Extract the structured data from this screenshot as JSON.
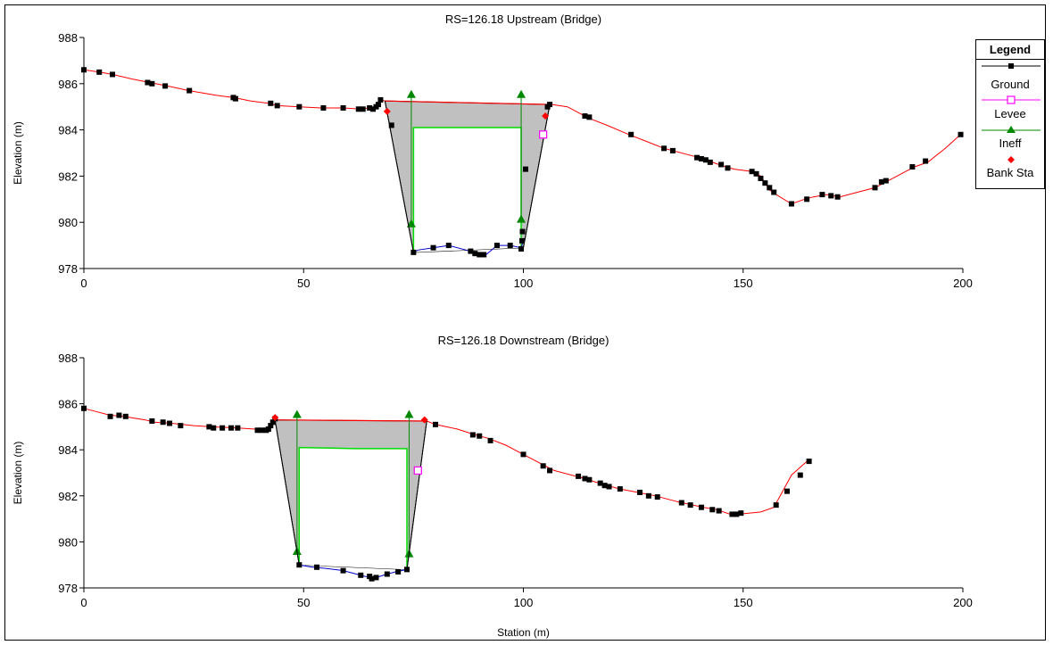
{
  "colors": {
    "ground_line": "#ff0000",
    "ground_marker": "#000000",
    "channel_line": "#0000cc",
    "levee": "#ff00ff",
    "ineff": "#008800",
    "deck": "#00dd00",
    "bank": "#ff0000",
    "fill": "#c0c0c0"
  },
  "legend": {
    "title": "Legend",
    "items": [
      {
        "label": "Ground",
        "icon": "square-marker-line"
      },
      {
        "label": "Levee",
        "icon": "hollow-square-marker-line"
      },
      {
        "label": "Ineff",
        "icon": "triangle-marker-line"
      },
      {
        "label": "Bank Sta",
        "icon": "diamond-marker"
      }
    ]
  },
  "chart_data": [
    {
      "type": "line",
      "title": "RS=126.18  Upstream  (Bridge)",
      "xlabel": "",
      "ylabel": "Elevation (m)",
      "xlim": [
        0,
        200
      ],
      "ylim": [
        978,
        988
      ],
      "xticks": [
        0,
        50,
        100,
        150,
        200
      ],
      "yticks": [
        978,
        980,
        982,
        984,
        986,
        988
      ],
      "ground_left": [
        [
          0,
          986.6
        ],
        [
          3.5,
          986.5
        ],
        [
          6.5,
          986.4
        ],
        [
          11,
          986.2
        ],
        [
          15,
          986.05
        ],
        [
          19,
          985.9
        ],
        [
          24,
          985.7
        ],
        [
          30,
          985.5
        ],
        [
          34,
          985.4
        ],
        [
          38,
          985.25
        ],
        [
          42,
          985.15
        ],
        [
          44,
          985.05
        ],
        [
          49,
          985.0
        ],
        [
          54,
          984.95
        ],
        [
          59,
          984.95
        ],
        [
          63,
          984.9
        ],
        [
          65,
          984.95
        ],
        [
          67,
          985.0
        ],
        [
          67.5,
          985.3
        ],
        [
          68.5,
          985.25
        ]
      ],
      "ground_right": [
        [
          106.5,
          985.1
        ],
        [
          110,
          985.0
        ],
        [
          114,
          984.6
        ],
        [
          115,
          984.5
        ],
        [
          119,
          984.2
        ],
        [
          124,
          983.8
        ],
        [
          128,
          983.5
        ],
        [
          132,
          983.2
        ],
        [
          134,
          983.1
        ],
        [
          137,
          982.95
        ],
        [
          140,
          982.8
        ],
        [
          143,
          982.6
        ],
        [
          146,
          982.4
        ],
        [
          148,
          982.3
        ],
        [
          152,
          982.2
        ],
        [
          154,
          982.0
        ],
        [
          155,
          981.7
        ],
        [
          156,
          981.4
        ],
        [
          157.5,
          981.2
        ],
        [
          161,
          980.8
        ],
        [
          164,
          981.0
        ],
        [
          166,
          981.1
        ],
        [
          169,
          981.2
        ],
        [
          172,
          981.1
        ],
        [
          176,
          981.3
        ],
        [
          180,
          981.5
        ],
        [
          182,
          981.7
        ],
        [
          185,
          982.0
        ],
        [
          189,
          982.4
        ],
        [
          192,
          982.6
        ],
        [
          196,
          983.2
        ],
        [
          199.5,
          983.8
        ]
      ],
      "ground_markers": [
        [
          0,
          986.6
        ],
        [
          3.5,
          986.5
        ],
        [
          6.5,
          986.4
        ],
        [
          14.5,
          986.05
        ],
        [
          15.5,
          986.0
        ],
        [
          18.5,
          985.9
        ],
        [
          24,
          985.7
        ],
        [
          34,
          985.4
        ],
        [
          34.5,
          985.35
        ],
        [
          42.5,
          985.15
        ],
        [
          44,
          985.05
        ],
        [
          49,
          985.0
        ],
        [
          54.5,
          984.95
        ],
        [
          59,
          984.95
        ],
        [
          62.5,
          984.9
        ],
        [
          63.5,
          984.9
        ],
        [
          65,
          984.95
        ],
        [
          65.8,
          984.9
        ],
        [
          66.5,
          985.0
        ],
        [
          67,
          985.1
        ],
        [
          67.5,
          985.3
        ],
        [
          70,
          984.2
        ],
        [
          100.5,
          982.3
        ],
        [
          105.5,
          985.0
        ],
        [
          106,
          985.1
        ],
        [
          114,
          984.6
        ],
        [
          115,
          984.55
        ],
        [
          124.5,
          983.8
        ],
        [
          132,
          983.2
        ],
        [
          134,
          983.1
        ],
        [
          139.5,
          982.8
        ],
        [
          140.5,
          982.75
        ],
        [
          141.5,
          982.7
        ],
        [
          142.5,
          982.6
        ],
        [
          145,
          982.5
        ],
        [
          146.5,
          982.35
        ],
        [
          152,
          982.2
        ],
        [
          153,
          982.1
        ],
        [
          154,
          981.9
        ],
        [
          155,
          981.7
        ],
        [
          156,
          981.5
        ],
        [
          157,
          981.3
        ],
        [
          161,
          980.8
        ],
        [
          164.5,
          981.0
        ],
        [
          168,
          981.2
        ],
        [
          170,
          981.15
        ],
        [
          171.5,
          981.1
        ],
        [
          180,
          981.5
        ],
        [
          181.5,
          981.75
        ],
        [
          182.5,
          981.8
        ],
        [
          188.5,
          982.4
        ],
        [
          191.5,
          982.65
        ],
        [
          199.5,
          983.8
        ]
      ],
      "channel": [
        [
          75,
          978.7
        ],
        [
          76,
          978.8
        ],
        [
          79.5,
          978.9
        ],
        [
          83,
          979.0
        ],
        [
          87,
          978.8
        ],
        [
          88.5,
          978.7
        ],
        [
          89.5,
          978.55
        ],
        [
          90.5,
          978.7
        ],
        [
          91.5,
          978.6
        ],
        [
          94,
          979.0
        ],
        [
          97,
          979.0
        ],
        [
          99.5,
          978.9
        ],
        [
          100,
          979.2
        ]
      ],
      "channel_markers": [
        [
          75,
          978.7
        ],
        [
          79.5,
          978.9
        ],
        [
          83,
          979.0
        ],
        [
          88,
          978.75
        ],
        [
          89,
          978.65
        ],
        [
          90,
          978.6
        ],
        [
          91,
          978.6
        ],
        [
          94,
          979.0
        ],
        [
          97,
          979.0
        ],
        [
          99.5,
          978.85
        ],
        [
          99.7,
          979.2
        ],
        [
          99.8,
          979.6
        ]
      ],
      "fill_poly": [
        [
          68.5,
          985.25
        ],
        [
          75,
          978.7
        ],
        [
          100,
          978.9
        ],
        [
          106,
          985.1
        ]
      ],
      "deck_top": [
        [
          68.5,
          985.25
        ],
        [
          106,
          985.1
        ]
      ],
      "opening": [
        [
          75,
          978.7
        ],
        [
          75,
          984.1
        ],
        [
          99.5,
          984.1
        ],
        [
          99.5,
          978.9
        ]
      ],
      "ineff": [
        [
          74.5,
          985.5
        ],
        [
          99.5,
          985.5
        ]
      ],
      "ineff_bottoms": [
        [
          74.5,
          979.9
        ],
        [
          99.5,
          980.1
        ]
      ],
      "bank": [
        [
          69,
          984.8
        ],
        [
          105,
          984.6
        ]
      ],
      "levee": [
        [
          104.5,
          983.8
        ]
      ]
    },
    {
      "type": "line",
      "title": "RS=126.18  Downstream  (Bridge)",
      "xlabel": "Station (m)",
      "ylabel": "Elevation (m)",
      "xlim": [
        0,
        200
      ],
      "ylim": [
        978,
        988
      ],
      "xticks": [
        0,
        50,
        100,
        150,
        200
      ],
      "yticks": [
        978,
        980,
        982,
        984,
        986,
        988
      ],
      "ground_left": [
        [
          0,
          985.8
        ],
        [
          2,
          985.7
        ],
        [
          6,
          985.5
        ],
        [
          9,
          985.45
        ],
        [
          14,
          985.3
        ],
        [
          16,
          985.2
        ],
        [
          20,
          985.15
        ],
        [
          25,
          985.05
        ],
        [
          29,
          985.0
        ],
        [
          35,
          984.95
        ],
        [
          39,
          984.9
        ],
        [
          41,
          984.85
        ],
        [
          42,
          984.9
        ],
        [
          43,
          985.2
        ],
        [
          43.5,
          985.3
        ]
      ],
      "ground_right": [
        [
          78,
          985.25
        ],
        [
          80,
          985.1
        ],
        [
          85,
          984.9
        ],
        [
          89,
          984.65
        ],
        [
          92,
          984.5
        ],
        [
          96,
          984.2
        ],
        [
          100,
          983.8
        ],
        [
          105,
          983.3
        ],
        [
          107,
          983.1
        ],
        [
          111,
          982.9
        ],
        [
          114,
          982.75
        ],
        [
          118,
          982.5
        ],
        [
          122,
          982.3
        ],
        [
          126,
          982.15
        ],
        [
          130,
          982.0
        ],
        [
          135,
          981.75
        ],
        [
          141,
          981.5
        ],
        [
          144,
          981.4
        ],
        [
          147,
          981.2
        ],
        [
          149,
          981.2
        ],
        [
          154,
          981.3
        ],
        [
          157,
          981.5
        ],
        [
          159,
          982.2
        ],
        [
          161,
          982.9
        ],
        [
          164.5,
          983.5
        ]
      ],
      "ground_markers": [
        [
          0,
          985.8
        ],
        [
          6,
          985.45
        ],
        [
          8,
          985.5
        ],
        [
          9.5,
          985.45
        ],
        [
          15.5,
          985.25
        ],
        [
          18,
          985.2
        ],
        [
          19.5,
          985.15
        ],
        [
          22,
          985.05
        ],
        [
          28.5,
          985.0
        ],
        [
          29.5,
          984.95
        ],
        [
          31.5,
          984.95
        ],
        [
          33.5,
          984.95
        ],
        [
          35,
          984.95
        ],
        [
          39.5,
          984.85
        ],
        [
          40.5,
          984.85
        ],
        [
          41.5,
          984.85
        ],
        [
          42,
          984.9
        ],
        [
          42.5,
          985.05
        ],
        [
          43,
          985.2
        ],
        [
          43.5,
          985.35
        ],
        [
          80,
          985.1
        ],
        [
          88.5,
          984.65
        ],
        [
          90,
          984.6
        ],
        [
          92.5,
          984.4
        ],
        [
          100,
          983.8
        ],
        [
          104.5,
          983.3
        ],
        [
          106,
          983.1
        ],
        [
          112.5,
          982.85
        ],
        [
          114,
          982.75
        ],
        [
          115,
          982.7
        ],
        [
          117.5,
          982.55
        ],
        [
          118.5,
          982.45
        ],
        [
          119.5,
          982.4
        ],
        [
          122,
          982.3
        ],
        [
          126.5,
          982.15
        ],
        [
          128.5,
          982.0
        ],
        [
          130.5,
          981.95
        ],
        [
          136,
          981.7
        ],
        [
          138,
          981.6
        ],
        [
          140.5,
          981.5
        ],
        [
          143,
          981.4
        ],
        [
          144.5,
          981.35
        ],
        [
          147.5,
          981.2
        ],
        [
          148.5,
          981.2
        ],
        [
          149.5,
          981.25
        ],
        [
          157.5,
          981.6
        ],
        [
          160,
          982.2
        ],
        [
          163,
          982.9
        ],
        [
          165,
          983.5
        ]
      ],
      "channel": [
        [
          49,
          979.0
        ],
        [
          52,
          978.9
        ],
        [
          55,
          978.85
        ],
        [
          59,
          978.75
        ],
        [
          62,
          978.6
        ],
        [
          64,
          978.5
        ],
        [
          65.5,
          978.45
        ],
        [
          66.5,
          978.45
        ],
        [
          69,
          978.6
        ],
        [
          71,
          978.7
        ],
        [
          73.5,
          978.8
        ]
      ],
      "channel_markers": [
        [
          49,
          979.0
        ],
        [
          53,
          978.9
        ],
        [
          59,
          978.75
        ],
        [
          63,
          978.55
        ],
        [
          65,
          978.5
        ],
        [
          65.5,
          978.4
        ],
        [
          66.5,
          978.45
        ],
        [
          69,
          978.6
        ],
        [
          71.5,
          978.7
        ],
        [
          73.5,
          978.8
        ]
      ],
      "fill_poly": [
        [
          43.5,
          985.3
        ],
        [
          49,
          979.0
        ],
        [
          73.5,
          978.8
        ],
        [
          78,
          985.25
        ]
      ],
      "deck_top": [
        [
          43.5,
          985.3
        ],
        [
          78,
          985.25
        ]
      ],
      "opening": [
        [
          49,
          979.0
        ],
        [
          49,
          984.1
        ],
        [
          62,
          984.05
        ],
        [
          73.5,
          984.05
        ],
        [
          73.5,
          978.8
        ]
      ],
      "ineff": [
        [
          48.5,
          985.5
        ],
        [
          74,
          985.5
        ]
      ],
      "ineff_bottoms": [
        [
          48.5,
          979.55
        ],
        [
          74,
          979.45
        ]
      ],
      "bank": [
        [
          43.5,
          985.4
        ],
        [
          77.5,
          985.3
        ]
      ],
      "levee": [
        [
          76,
          983.1
        ]
      ]
    }
  ]
}
